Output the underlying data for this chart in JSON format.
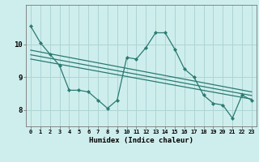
{
  "xlabel": "Humidex (Indice chaleur)",
  "bg_color": "#ceeeed",
  "grid_color": "#aed4d4",
  "line_color": "#2a7a70",
  "x_data": [
    0,
    1,
    2,
    3,
    4,
    5,
    6,
    7,
    8,
    9,
    10,
    11,
    12,
    13,
    14,
    15,
    16,
    17,
    18,
    19,
    20,
    21,
    22,
    23
  ],
  "y_main": [
    10.55,
    10.05,
    9.7,
    9.35,
    8.6,
    8.6,
    8.55,
    8.3,
    8.05,
    8.3,
    9.6,
    9.55,
    9.9,
    10.35,
    10.35,
    9.85,
    9.25,
    9.0,
    8.45,
    8.2,
    8.15,
    7.75,
    8.45,
    8.3
  ],
  "trend1_x": [
    0,
    23
  ],
  "trend1_y": [
    9.82,
    8.55
  ],
  "trend2_x": [
    0,
    23
  ],
  "trend2_y": [
    9.68,
    8.44
  ],
  "trend3_x": [
    0,
    23
  ],
  "trend3_y": [
    9.55,
    8.33
  ],
  "ylim": [
    7.5,
    11.2
  ],
  "xlim": [
    -0.5,
    23.5
  ],
  "yticks": [
    8,
    9,
    10
  ],
  "xticks": [
    0,
    1,
    2,
    3,
    4,
    5,
    6,
    7,
    8,
    9,
    10,
    11,
    12,
    13,
    14,
    15,
    16,
    17,
    18,
    19,
    20,
    21,
    22,
    23
  ]
}
